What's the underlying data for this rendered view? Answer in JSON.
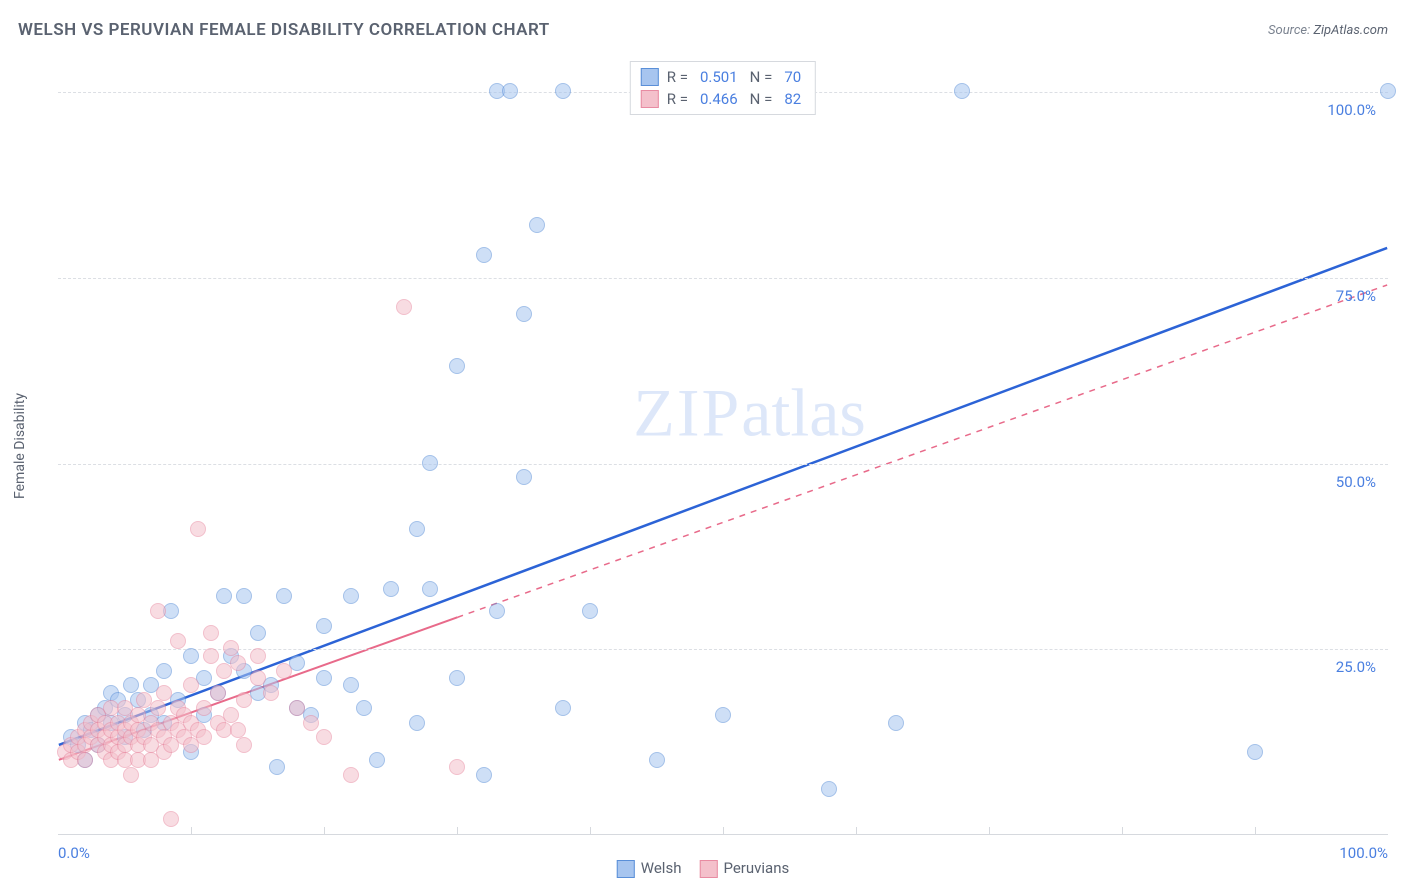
{
  "title": "WELSH VS PERUVIAN FEMALE DISABILITY CORRELATION CHART",
  "source_prefix": "Source: ",
  "source_link": "ZipAtlas.com",
  "ylabel": "Female Disability",
  "watermark_a": "ZIP",
  "watermark_b": "atlas",
  "chart": {
    "type": "scatter",
    "xlim": [
      0,
      100
    ],
    "ylim": [
      0,
      105
    ],
    "background_color": "#ffffff",
    "grid_color": "#dcdfe4",
    "grid_dash": "4,4",
    "y_gridlines": [
      25,
      50,
      75,
      100
    ],
    "y_tick_labels": [
      "25.0%",
      "50.0%",
      "75.0%",
      "100.0%"
    ],
    "x_ticks_minor": [
      10,
      20,
      30,
      40,
      50,
      60,
      70,
      80,
      90
    ],
    "x_tick_labels": {
      "0": "0.0%",
      "100": "100.0%"
    },
    "tick_label_color": "#4a7fe0",
    "axis_label_color": "#5a6270",
    "marker_radius": 8,
    "marker_opacity": 0.55,
    "series": [
      {
        "name": "Welsh",
        "legend_label": "Welsh",
        "fill": "#a7c5ef",
        "stroke": "#5a8fd8",
        "trend_color": "#2c63d6",
        "trend_width": 2.5,
        "trend_dash_after_x": null,
        "R": "0.501",
        "N": "70",
        "trend": {
          "x1": 0,
          "y1": 12,
          "x2": 100,
          "y2": 79
        },
        "points": [
          [
            1,
            13
          ],
          [
            1.5,
            12
          ],
          [
            2,
            10
          ],
          [
            2,
            15
          ],
          [
            2.5,
            14
          ],
          [
            3,
            16
          ],
          [
            3,
            12
          ],
          [
            3.5,
            17
          ],
          [
            4,
            15
          ],
          [
            4,
            19
          ],
          [
            4.5,
            18
          ],
          [
            5,
            16
          ],
          [
            5,
            13
          ],
          [
            5.5,
            20
          ],
          [
            6,
            18
          ],
          [
            6.5,
            14
          ],
          [
            7,
            20
          ],
          [
            7,
            16
          ],
          [
            8,
            22
          ],
          [
            8,
            15
          ],
          [
            8.5,
            30
          ],
          [
            9,
            18
          ],
          [
            10,
            24
          ],
          [
            10,
            11
          ],
          [
            11,
            21
          ],
          [
            11,
            16
          ],
          [
            12,
            19
          ],
          [
            12.5,
            32
          ],
          [
            13,
            24
          ],
          [
            14,
            22
          ],
          [
            14,
            32
          ],
          [
            15,
            19
          ],
          [
            15,
            27
          ],
          [
            16,
            20
          ],
          [
            16.5,
            9
          ],
          [
            17,
            32
          ],
          [
            18,
            17
          ],
          [
            18,
            23
          ],
          [
            19,
            16
          ],
          [
            20,
            21
          ],
          [
            20,
            28
          ],
          [
            22,
            20
          ],
          [
            22,
            32
          ],
          [
            23,
            17
          ],
          [
            24,
            10
          ],
          [
            25,
            33
          ],
          [
            27,
            15
          ],
          [
            27,
            41
          ],
          [
            28,
            50
          ],
          [
            28,
            33
          ],
          [
            30,
            63
          ],
          [
            30,
            21
          ],
          [
            32,
            78
          ],
          [
            32,
            8
          ],
          [
            33,
            30
          ],
          [
            33,
            100
          ],
          [
            34,
            100
          ],
          [
            35,
            48
          ],
          [
            35,
            70
          ],
          [
            36,
            82
          ],
          [
            38,
            17
          ],
          [
            38,
            100
          ],
          [
            40,
            30
          ],
          [
            45,
            10
          ],
          [
            50,
            16
          ],
          [
            58,
            6
          ],
          [
            63,
            15
          ],
          [
            68,
            100
          ],
          [
            90,
            11
          ],
          [
            100,
            100
          ]
        ]
      },
      {
        "name": "Peruvians",
        "legend_label": "Peruvians",
        "fill": "#f4c0cb",
        "stroke": "#e88ba2",
        "trend_color": "#e86a8a",
        "trend_width": 2,
        "trend_dash_after_x": 30,
        "R": "0.466",
        "N": "82",
        "trend": {
          "x1": 0,
          "y1": 10,
          "x2": 100,
          "y2": 74
        },
        "points": [
          [
            0.5,
            11
          ],
          [
            1,
            12
          ],
          [
            1,
            10
          ],
          [
            1.5,
            13
          ],
          [
            1.5,
            11
          ],
          [
            2,
            14
          ],
          [
            2,
            12
          ],
          [
            2,
            10
          ],
          [
            2.5,
            13
          ],
          [
            2.5,
            15
          ],
          [
            3,
            12
          ],
          [
            3,
            14
          ],
          [
            3,
            16
          ],
          [
            3.5,
            11
          ],
          [
            3.5,
            13
          ],
          [
            3.5,
            15
          ],
          [
            4,
            10
          ],
          [
            4,
            12
          ],
          [
            4,
            14
          ],
          [
            4,
            17
          ],
          [
            4.5,
            13
          ],
          [
            4.5,
            11
          ],
          [
            4.5,
            15
          ],
          [
            5,
            12
          ],
          [
            5,
            14
          ],
          [
            5,
            10
          ],
          [
            5,
            17
          ],
          [
            5.5,
            13
          ],
          [
            5.5,
            15
          ],
          [
            5.5,
            8
          ],
          [
            6,
            12
          ],
          [
            6,
            14
          ],
          [
            6,
            16
          ],
          [
            6,
            10
          ],
          [
            6.5,
            13
          ],
          [
            6.5,
            18
          ],
          [
            7,
            12
          ],
          [
            7,
            15
          ],
          [
            7,
            10
          ],
          [
            7.5,
            14
          ],
          [
            7.5,
            17
          ],
          [
            7.5,
            30
          ],
          [
            8,
            13
          ],
          [
            8,
            11
          ],
          [
            8,
            19
          ],
          [
            8.5,
            15
          ],
          [
            8.5,
            12
          ],
          [
            8.5,
            2
          ],
          [
            9,
            14
          ],
          [
            9,
            17
          ],
          [
            9,
            26
          ],
          [
            9.5,
            13
          ],
          [
            9.5,
            16
          ],
          [
            10,
            12
          ],
          [
            10,
            15
          ],
          [
            10,
            20
          ],
          [
            10.5,
            14
          ],
          [
            10.5,
            41
          ],
          [
            11,
            13
          ],
          [
            11,
            17
          ],
          [
            11.5,
            24
          ],
          [
            11.5,
            27
          ],
          [
            12,
            15
          ],
          [
            12,
            19
          ],
          [
            12.5,
            14
          ],
          [
            12.5,
            22
          ],
          [
            13,
            16
          ],
          [
            13,
            25
          ],
          [
            13.5,
            23
          ],
          [
            13.5,
            14
          ],
          [
            14,
            18
          ],
          [
            14,
            12
          ],
          [
            15,
            21
          ],
          [
            15,
            24
          ],
          [
            16,
            19
          ],
          [
            17,
            22
          ],
          [
            18,
            17
          ],
          [
            19,
            15
          ],
          [
            20,
            13
          ],
          [
            22,
            8
          ],
          [
            26,
            71
          ],
          [
            30,
            9
          ]
        ]
      }
    ]
  },
  "legend_top": {
    "r_label": "R =",
    "n_label": "N ="
  }
}
